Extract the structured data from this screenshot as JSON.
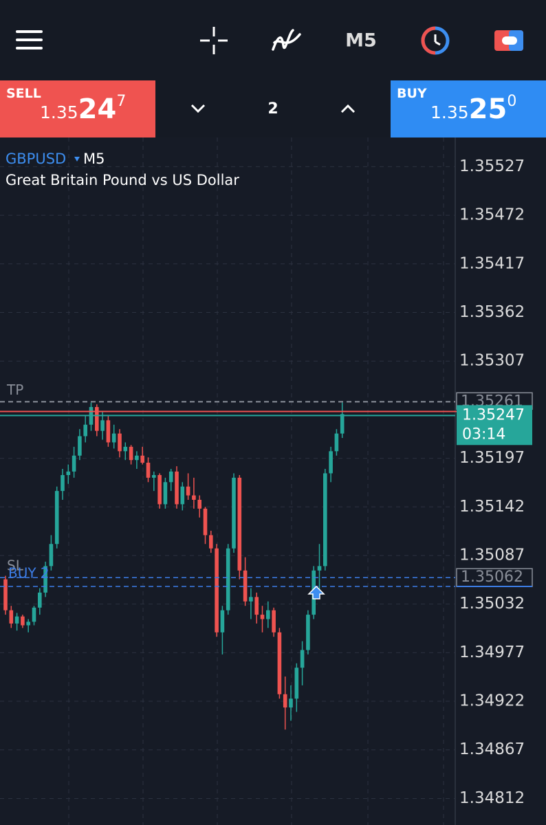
{
  "toolbar": {
    "timeframe": "M5"
  },
  "trade_panel": {
    "sell": {
      "label": "SELL",
      "price_head": "1.35",
      "price_big": "24",
      "price_tail": "7"
    },
    "lots": "2",
    "buy": {
      "label": "BUY",
      "price_head": "1.35",
      "price_big": "25",
      "price_tail": "0"
    }
  },
  "chart_data": {
    "type": "candlestick",
    "title": "GBPUSD",
    "timeframe": "M5",
    "subtitle": "Great Britain Pound vs US Dollar",
    "up_color": "#26a69a",
    "down_color": "#ef5350",
    "grid": true,
    "ylim": [
      1.34782,
      1.3556
    ],
    "yticks": [
      1.35527,
      1.35472,
      1.35417,
      1.35362,
      1.35307,
      1.35197,
      1.35142,
      1.35087,
      1.35032,
      1.34977,
      1.34922,
      1.34867,
      1.34812
    ],
    "open": [
      1.3506,
      1.35025,
      1.3501,
      1.35018,
      1.35008,
      1.35012,
      1.35028,
      1.35045,
      1.35075,
      1.351,
      1.3516,
      1.35178,
      1.35182,
      1.352,
      1.35222,
      1.35235,
      1.35255,
      1.35228,
      1.3524,
      1.35215,
      1.35225,
      1.35205,
      1.3521,
      1.35195,
      1.352,
      1.35192,
      1.35175,
      1.35178,
      1.35145,
      1.3517,
      1.35182,
      1.35145,
      1.35165,
      1.35155,
      1.3515,
      1.3514,
      1.3511,
      1.35095,
      1.35,
      1.35025,
      1.35095,
      1.35175,
      1.3507,
      1.35035,
      1.3504,
      1.3502,
      1.35015,
      1.35025,
      1.35,
      1.3493,
      1.34915,
      1.34925,
      1.3496,
      1.3498,
      1.3502,
      1.3507,
      1.35075,
      1.3518,
      1.35205,
      1.35225
    ],
    "high": [
      1.35064,
      1.3503,
      1.35022,
      1.3502,
      1.35015,
      1.3503,
      1.3505,
      1.3508,
      1.3511,
      1.35165,
      1.35185,
      1.3519,
      1.3521,
      1.3523,
      1.35245,
      1.3526,
      1.35258,
      1.3525,
      1.35245,
      1.35235,
      1.3523,
      1.35215,
      1.35212,
      1.35205,
      1.3521,
      1.35198,
      1.35182,
      1.3518,
      1.35175,
      1.35185,
      1.35188,
      1.3517,
      1.3518,
      1.35175,
      1.35155,
      1.35142,
      1.35115,
      1.351,
      1.3503,
      1.351,
      1.3518,
      1.35178,
      1.35085,
      1.3505,
      1.35045,
      1.3503,
      1.35035,
      1.35028,
      1.35005,
      1.3495,
      1.3494,
      1.34965,
      1.3499,
      1.35025,
      1.35075,
      1.351,
      1.35185,
      1.3521,
      1.3523,
      1.3526
    ],
    "low": [
      1.3502,
      1.35005,
      1.35002,
      1.35005,
      1.35,
      1.35008,
      1.3502,
      1.3504,
      1.3507,
      1.35095,
      1.3515,
      1.35168,
      1.35175,
      1.35195,
      1.35215,
      1.35228,
      1.35222,
      1.35218,
      1.3521,
      1.35208,
      1.35198,
      1.35195,
      1.3519,
      1.35185,
      1.3519,
      1.3517,
      1.3516,
      1.3514,
      1.3514,
      1.3516,
      1.3514,
      1.35138,
      1.3515,
      1.3514,
      1.3513,
      1.351,
      1.3509,
      1.34995,
      1.34975,
      1.3502,
      1.3509,
      1.3506,
      1.3503,
      1.35015,
      1.3501,
      1.35,
      1.35005,
      1.34995,
      1.34925,
      1.3489,
      1.349,
      1.3491,
      1.3494,
      1.34975,
      1.35015,
      1.3504,
      1.3507,
      1.3517,
      1.352,
      1.3522
    ],
    "close": [
      1.35025,
      1.3501,
      1.35018,
      1.35008,
      1.35012,
      1.35028,
      1.35045,
      1.35075,
      1.351,
      1.3516,
      1.35178,
      1.35182,
      1.352,
      1.35222,
      1.35235,
      1.35255,
      1.35228,
      1.3524,
      1.35215,
      1.35225,
      1.35205,
      1.3521,
      1.35195,
      1.352,
      1.35192,
      1.35175,
      1.35178,
      1.35145,
      1.3517,
      1.35182,
      1.35145,
      1.35165,
      1.35155,
      1.3515,
      1.3514,
      1.3511,
      1.35095,
      1.35,
      1.35025,
      1.35095,
      1.35175,
      1.3507,
      1.35035,
      1.3504,
      1.3502,
      1.35015,
      1.35025,
      1.35,
      1.3493,
      1.34915,
      1.34925,
      1.3496,
      1.3498,
      1.3502,
      1.3507,
      1.35075,
      1.3518,
      1.35205,
      1.35225,
      1.35247
    ],
    "take_profit": {
      "name": "TP",
      "value": 1.35261
    },
    "stop_loss": {
      "name": "SL",
      "value": 1.35062
    },
    "position": {
      "name": "BUY 2",
      "value": 1.35052
    },
    "ask_line": 1.3525,
    "bid": {
      "value": 1.35247,
      "countdown": "03:14"
    }
  }
}
